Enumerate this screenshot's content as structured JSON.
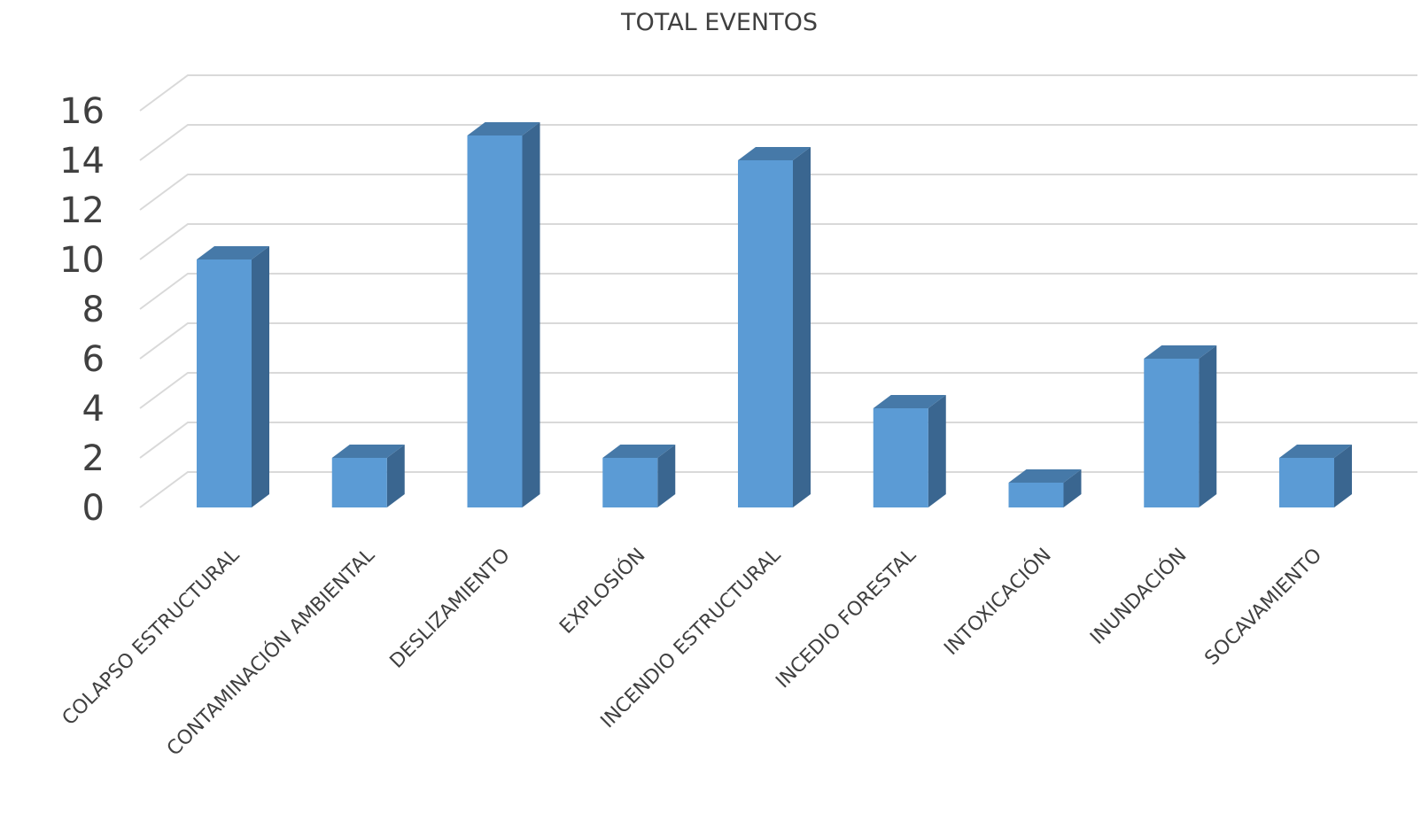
{
  "chart_data": {
    "type": "bar",
    "title": "TOTAL EVENTOS",
    "categories": [
      "COLAPSO ESTRUCTURAL",
      "CONTAMINACIÓN AMBIENTAL",
      "DESLIZAMIENTO",
      "EXPLOSIÓN",
      "INCENDIO ESTRUCTURAL",
      "INCEDIO FORESTAL",
      "INTOXICACIÓN",
      "INUNDACIÓN",
      "SOCAVAMIENTO"
    ],
    "values": [
      10,
      2,
      15,
      2,
      14,
      4,
      1,
      6,
      2
    ],
    "xlabel": "",
    "ylabel": "",
    "ylim": [
      0,
      16
    ],
    "yticks": [
      0,
      2,
      4,
      6,
      8,
      10,
      12,
      14,
      16
    ],
    "grid": true,
    "legend": "none",
    "style": "3d-column",
    "colors": {
      "front": "#5b9bd5",
      "side": "#3a6690",
      "top": "#4679a8"
    }
  }
}
